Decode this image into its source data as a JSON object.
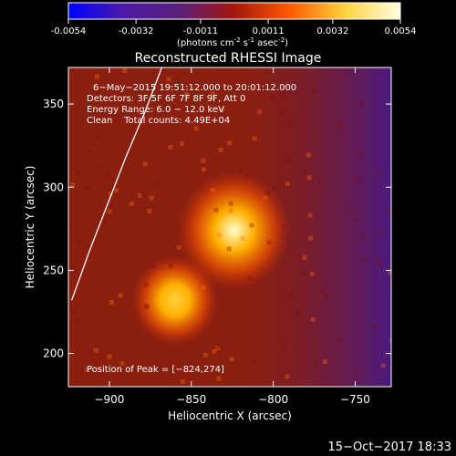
{
  "colorbar": {
    "ticks": [
      "-0.0054",
      "-0.0032",
      "-0.0011",
      "0.0011",
      "0.0032",
      "0.0054"
    ],
    "tick_values": [
      -0.0054,
      -0.0032,
      -0.0011,
      0.0011,
      0.0032,
      0.0054
    ],
    "unit_label": "(photons cm",
    "unit_sup1": "-2",
    "unit_mid": " s",
    "unit_sup2": "-1",
    "unit_end": " asec",
    "unit_sup3": "-2",
    "unit_close": ")",
    "colors": [
      "#0000ff",
      "#4b1aa8",
      "#5a1f7a",
      "#a5160c",
      "#ff5a00",
      "#ffd23f",
      "#ffffe0"
    ]
  },
  "chart_data": {
    "type": "heatmap",
    "title": "Reconstructed RHESSI Image",
    "xlabel": "Heliocentric X (arcsec)",
    "ylabel": "Heliocentric Y (arcsec)",
    "xlim": [
      -925,
      -728
    ],
    "ylim": [
      180,
      372
    ],
    "x_ticks": [
      -900,
      -850,
      -800,
      -750
    ],
    "x_tick_labels": [
      "−900",
      "−850",
      "−800",
      "−750"
    ],
    "y_ticks": [
      200,
      250,
      300,
      350
    ],
    "y_tick_labels": [
      "200",
      "250",
      "300",
      "350"
    ],
    "annotations": [
      "6−May−2015 19:51:12.000 to 20:01:12.000",
      "Detectors: 3F 5F 6F 7F 8F 9F, Att 0",
      "Energy Range: 6.0 − 12.0 keV",
      "Clean    Total counts: 4.49E+04"
    ],
    "peak_label": "Position of Peak = [−824,274]",
    "peak": {
      "x": -824,
      "y": 274
    },
    "sources": [
      {
        "x": -824,
        "y": 274,
        "level": 0.0054
      },
      {
        "x": -860,
        "y": 232,
        "level": 0.0034
      }
    ],
    "limb_points": [
      [
        -923,
        232
      ],
      [
        -912,
        262
      ],
      [
        -901,
        290
      ],
      [
        -890,
        318
      ],
      [
        -878,
        346
      ],
      [
        -868,
        372
      ]
    ]
  },
  "footer": {
    "timestamp": "15−Oct−2017 18:33"
  }
}
